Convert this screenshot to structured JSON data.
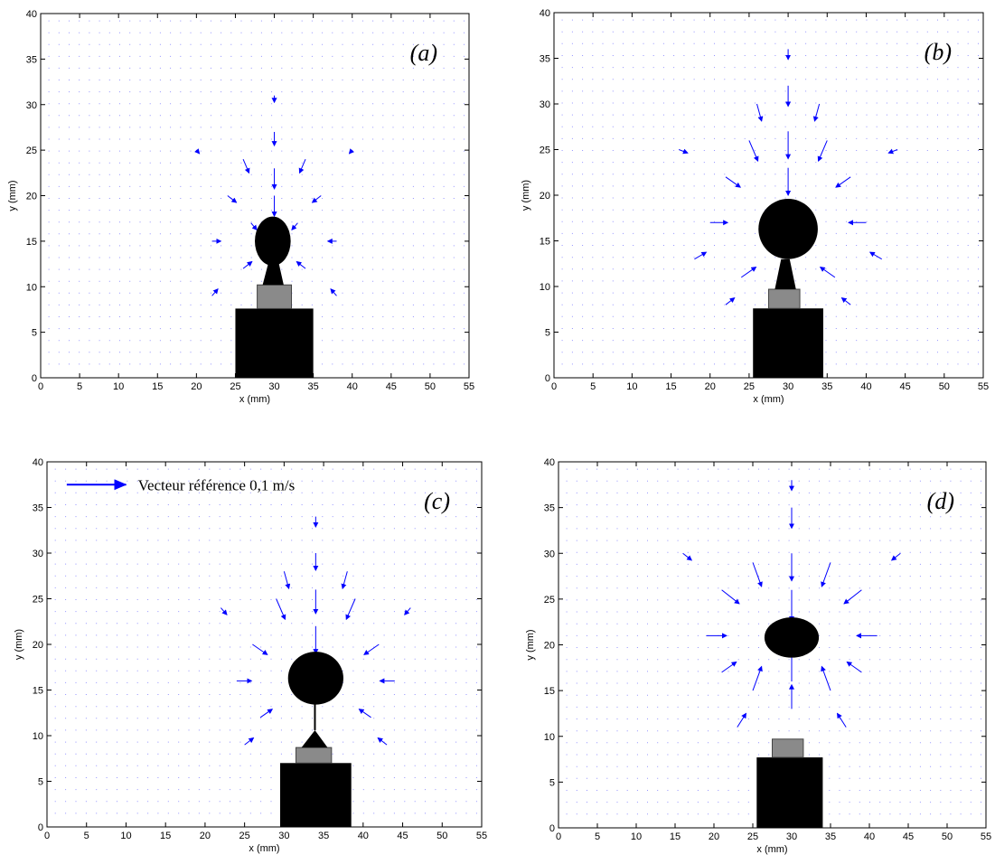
{
  "chart_data": [
    {
      "type": "quiver",
      "label": "(a)",
      "xlabel": "x (mm)",
      "ylabel": "y (mm)",
      "color": "#0000ff",
      "xlim": [
        0,
        55
      ],
      "ylim": [
        0,
        40
      ],
      "xticks": [
        0,
        5,
        10,
        15,
        20,
        25,
        30,
        35,
        40,
        45,
        50,
        55
      ],
      "yticks": [
        0,
        5,
        10,
        15,
        20,
        25,
        30,
        35,
        40
      ],
      "x": [
        30,
        30,
        30,
        26,
        34,
        24,
        36,
        22,
        38,
        26,
        34,
        22,
        38,
        30,
        27,
        33,
        20,
        40
      ],
      "y": [
        27,
        23,
        20,
        24,
        24,
        20,
        20,
        15,
        15,
        12,
        12,
        9,
        9,
        31,
        17,
        17,
        25,
        25
      ],
      "u": [
        0,
        0,
        0,
        0.01,
        -0.01,
        0.015,
        -0.015,
        0.015,
        -0.015,
        0.015,
        -0.015,
        0.01,
        -0.01,
        0,
        0.01,
        -0.01,
        0.005,
        -0.005
      ],
      "v": [
        -0.02,
        -0.03,
        -0.03,
        -0.02,
        -0.02,
        -0.01,
        -0.01,
        0,
        0,
        0.01,
        0.01,
        0.01,
        0.01,
        -0.01,
        -0.01,
        -0.01,
        -0.005,
        -0.005
      ]
    },
    {
      "type": "quiver",
      "label": "(b)",
      "xlabel": "x (mm)",
      "ylabel": "y (mm)",
      "color": "#0000ff",
      "xlim": [
        0,
        55
      ],
      "ylim": [
        0,
        40
      ],
      "xticks": [
        0,
        5,
        10,
        15,
        20,
        25,
        30,
        35,
        40,
        45,
        50,
        55
      ],
      "yticks": [
        0,
        5,
        10,
        15,
        20,
        25,
        30,
        35,
        40
      ],
      "x": [
        30,
        30,
        30,
        25,
        35,
        22,
        38,
        20,
        40,
        18,
        42,
        24,
        36,
        22,
        38,
        30,
        26,
        34,
        16,
        44
      ],
      "y": [
        32,
        27,
        23,
        26,
        26,
        22,
        22,
        17,
        17,
        13,
        13,
        11,
        11,
        8,
        8,
        36,
        30,
        30,
        25,
        25
      ],
      "u": [
        0,
        0,
        0,
        0.015,
        -0.015,
        0.025,
        -0.025,
        0.03,
        -0.03,
        0.02,
        -0.02,
        0.025,
        -0.025,
        0.015,
        -0.015,
        0,
        0.008,
        -0.008,
        0.015,
        -0.015
      ],
      "v": [
        -0.03,
        -0.04,
        -0.04,
        -0.03,
        -0.03,
        -0.015,
        -0.015,
        0,
        0,
        0.01,
        0.01,
        0.015,
        0.015,
        0.01,
        0.01,
        -0.015,
        -0.025,
        -0.025,
        -0.005,
        -0.005
      ]
    },
    {
      "type": "quiver",
      "label": "(c)",
      "annotation": "Vecteur référence 0,1 m/s",
      "xlabel": "x (mm)",
      "ylabel": "y (mm)",
      "color": "#0000ff",
      "xlim": [
        0,
        55
      ],
      "ylim": [
        0,
        40
      ],
      "xticks": [
        0,
        5,
        10,
        15,
        20,
        25,
        30,
        35,
        40,
        45,
        50,
        55
      ],
      "yticks": [
        0,
        5,
        10,
        15,
        20,
        25,
        30,
        35,
        40
      ],
      "x": [
        34,
        34,
        34,
        29,
        39,
        26,
        42,
        24,
        44,
        27,
        41,
        25,
        43,
        34,
        30,
        38,
        22,
        46
      ],
      "y": [
        30,
        26,
        22,
        25,
        25,
        20,
        20,
        16,
        16,
        12,
        12,
        9,
        9,
        34,
        28,
        28,
        24,
        24
      ],
      "u": [
        0,
        0,
        0,
        0.015,
        -0.015,
        0.025,
        -0.025,
        0.025,
        -0.025,
        0.02,
        -0.02,
        0.015,
        -0.015,
        0,
        0.008,
        -0.008,
        0.01,
        -0.01
      ],
      "v": [
        -0.025,
        -0.035,
        -0.04,
        -0.03,
        -0.03,
        -0.015,
        -0.015,
        0,
        0,
        0.012,
        0.012,
        0.01,
        0.01,
        -0.015,
        -0.025,
        -0.025,
        -0.01,
        -0.01
      ]
    },
    {
      "type": "quiver",
      "label": "(d)",
      "xlabel": "x (mm)",
      "ylabel": "y (mm)",
      "color": "#0000ff",
      "xlim": [
        0,
        55
      ],
      "ylim": [
        0,
        40
      ],
      "xticks": [
        0,
        5,
        10,
        15,
        20,
        25,
        30,
        35,
        40,
        45,
        50,
        55
      ],
      "yticks": [
        0,
        5,
        10,
        15,
        20,
        25,
        30,
        35,
        40
      ],
      "x": [
        30,
        30,
        30,
        25,
        35,
        21,
        39,
        19,
        41,
        30,
        30,
        25,
        35,
        21,
        39,
        23,
        37,
        16,
        44,
        30
      ],
      "y": [
        35,
        30,
        26,
        29,
        29,
        26,
        26,
        21,
        21,
        16,
        13,
        15,
        15,
        17,
        17,
        11,
        11,
        30,
        30,
        38
      ],
      "u": [
        0,
        0,
        0,
        0.015,
        -0.015,
        0.03,
        -0.03,
        0.035,
        -0.035,
        0,
        0,
        0.015,
        -0.015,
        0.025,
        -0.025,
        0.015,
        -0.015,
        0.015,
        -0.015,
        0
      ],
      "v": [
        -0.03,
        -0.04,
        -0.045,
        -0.035,
        -0.035,
        -0.02,
        -0.02,
        0,
        0,
        0.045,
        0.035,
        0.035,
        0.035,
        0.015,
        0.015,
        0.02,
        0.02,
        -0.01,
        -0.01,
        -0.015
      ]
    }
  ]
}
